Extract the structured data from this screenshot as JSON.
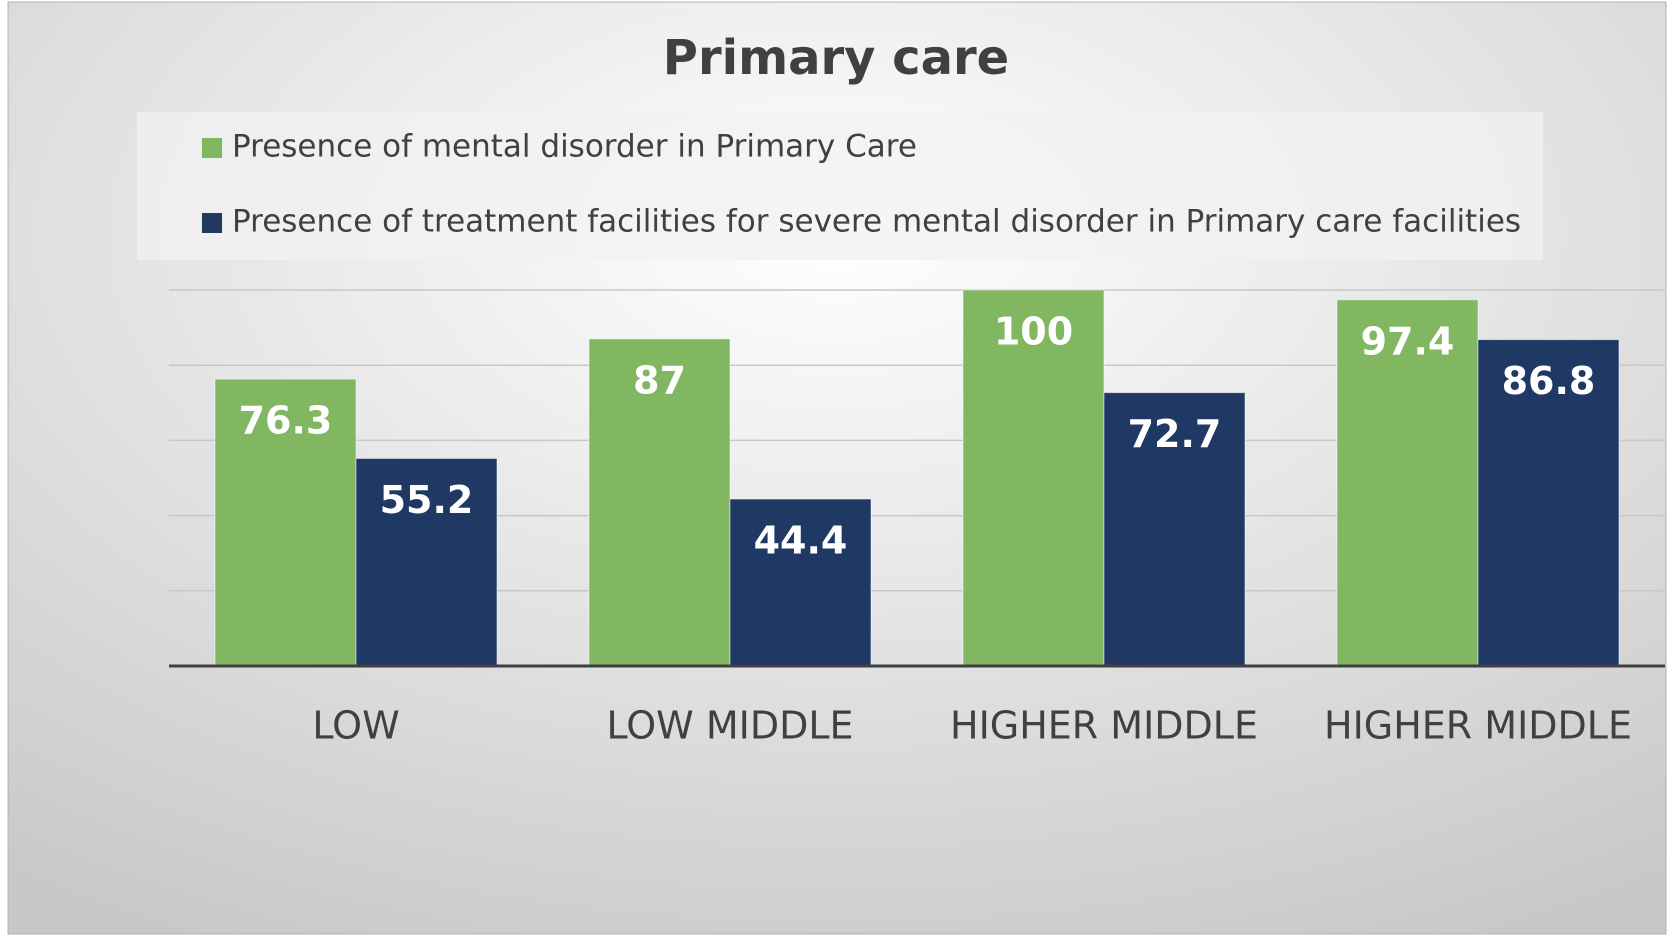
{
  "chart_data": {
    "type": "bar",
    "title": "Primary care",
    "categories": [
      "LOW",
      "LOW MIDDLE",
      "HIGHER MIDDLE",
      "HIGHER MIDDLE"
    ],
    "series": [
      {
        "name": "Presence of mental disorder in Primary Care",
        "color": "#82b762",
        "values": [
          76.3,
          87,
          100,
          97.4
        ]
      },
      {
        "name": "Presence of treatment facilities for severe mental disorder in Primary care facilities",
        "color": "#1f3864",
        "values": [
          55.2,
          44.4,
          72.7,
          86.8
        ]
      }
    ],
    "ylim": [
      0,
      100
    ],
    "yticks": [
      0,
      20,
      40,
      60,
      80,
      100
    ],
    "grid": true,
    "legend": "top"
  }
}
